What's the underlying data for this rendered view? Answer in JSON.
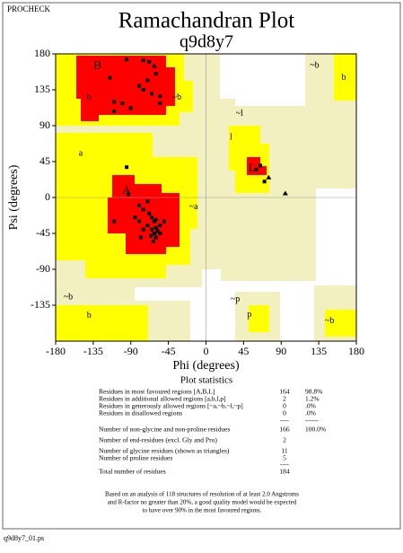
{
  "header": "PROCHECK",
  "chart_data": {
    "type": "scatter",
    "title": "Ramachandran Plot",
    "subtitle": "q9d8y7",
    "x_label": "Phi (degrees)",
    "y_label": "Psi (degrees)",
    "xlim": [
      -180,
      180
    ],
    "ylim": [
      -180,
      180
    ],
    "xticks": [
      -180,
      -135,
      -90,
      -45,
      0,
      45,
      90,
      135,
      180
    ],
    "yticks": [
      -135,
      -90,
      -45,
      0,
      45,
      90,
      135,
      180
    ],
    "zero_lines": true,
    "series": [
      {
        "marker": "square",
        "color": "#000000",
        "x": [
          -95,
          -75,
          -68,
          -115,
          -60,
          -70,
          -80,
          -75,
          -65,
          -55,
          -110,
          -110,
          -90,
          -100,
          -55,
          -95,
          -93,
          -80,
          -70,
          -75,
          -68,
          -65,
          -62,
          -70,
          -60,
          -65,
          -58,
          -62,
          -66,
          -60,
          -55,
          -63,
          -75,
          -80,
          -85,
          -78,
          -55,
          -60,
          -110,
          -50,
          60,
          70,
          65
        ],
        "y": [
          173,
          172,
          170,
          150,
          155,
          147,
          140,
          135,
          130,
          127,
          120,
          108,
          112,
          118,
          118,
          38,
          4,
          -10,
          -5,
          -15,
          -20,
          -25,
          -30,
          -35,
          -38,
          -40,
          -42,
          -45,
          -48,
          -50,
          -45,
          -55,
          -40,
          -30,
          -25,
          -50,
          -35,
          -28,
          -30,
          -30,
          35,
          20,
          40
        ]
      },
      {
        "marker": "triangle",
        "color": "#000000",
        "x": [
          -62,
          75,
          95
        ],
        "y": [
          165,
          25,
          5
        ]
      }
    ],
    "annotations": [
      {
        "text": "B",
        "x": -130,
        "y": 165
      },
      {
        "text": "b",
        "x": -140,
        "y": 125
      },
      {
        "text": "~b",
        "x": -35,
        "y": 125
      },
      {
        "text": "a",
        "x": -150,
        "y": 55
      },
      {
        "text": "A",
        "x": -95,
        "y": 8
      },
      {
        "text": "~a",
        "x": -15,
        "y": -12
      },
      {
        "text": "~l",
        "x": 40,
        "y": 105
      },
      {
        "text": "l",
        "x": 30,
        "y": 75
      },
      {
        "text": "L",
        "x": 55,
        "y": 36
      },
      {
        "text": "~b",
        "x": 130,
        "y": 165
      },
      {
        "text": "b",
        "x": 165,
        "y": 150
      },
      {
        "text": "~b",
        "x": -165,
        "y": -125
      },
      {
        "text": "b",
        "x": -140,
        "y": -148
      },
      {
        "text": "~p",
        "x": 35,
        "y": -128
      },
      {
        "text": "p",
        "x": 52,
        "y": -147
      },
      {
        "text": "~b",
        "x": 148,
        "y": -155
      }
    ]
  },
  "statistics": {
    "title": "Plot statistics",
    "rows": [
      [
        "Residues in most favoured regions  [A,B,L]",
        "164",
        "98.8%"
      ],
      [
        "Residues in additional allowed regions  [a,b,l,p]",
        "2",
        "1.2%"
      ],
      [
        "Residues in generously allowed regions  [~a,~b,~l,~p]",
        "0",
        ".0%"
      ],
      [
        "Residues in disallowed regions",
        "0",
        ".0%"
      ],
      [
        "",
        "----",
        "------"
      ],
      [
        "Number of non-glycine and non-proline residues",
        "166",
        "100.0%"
      ],
      [
        "Number of end-residues (excl. Gly and Pro)",
        "2",
        ""
      ],
      [
        "Number of glycine residues (shown as triangles)",
        "11",
        ""
      ],
      [
        "Number of proline residues",
        "5",
        ""
      ],
      [
        "",
        "----",
        ""
      ],
      [
        "Total number of residues",
        "184",
        ""
      ]
    ]
  },
  "note": [
    "Based on an analysis of 118 structures of resolution of at least 2.0 Angstroms",
    "and R-factor no greater than 20%, a good quality model would be expected",
    "to have over 90% in the most favoured regions."
  ],
  "footer": "q9d8y7_01.ps"
}
